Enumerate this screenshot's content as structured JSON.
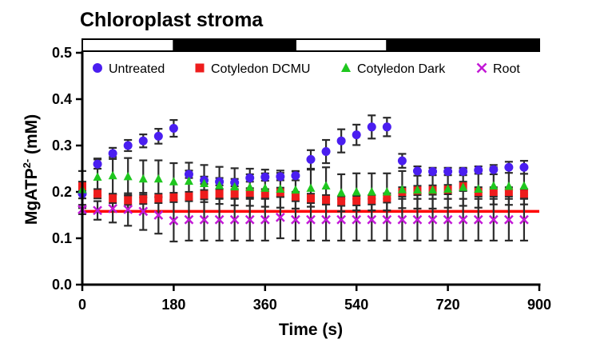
{
  "chart_data": {
    "type": "scatter",
    "title": "Chloroplast stroma",
    "xlabel": "Time (s)",
    "ylabel_main": "MgATP",
    "ylabel_sup": "2-",
    "ylabel_tail": " (mM)",
    "xlim": [
      0,
      900
    ],
    "ylim": [
      0,
      0.5
    ],
    "x_ticks": [
      0,
      180,
      360,
      540,
      720,
      900
    ],
    "x_tick_labels": [
      "0",
      "180",
      "360",
      "540",
      "720",
      "900"
    ],
    "y_ticks": [
      0,
      0.1,
      0.2,
      0.3,
      0.4,
      0.5
    ],
    "y_tick_labels": [
      "0.0",
      "0.1",
      "0.2",
      "0.3",
      "0.4",
      "0.5"
    ],
    "legend_position": "top",
    "light_dark_bar": [
      {
        "start": 0,
        "end": 180,
        "state": "light"
      },
      {
        "start": 180,
        "end": 420,
        "state": "dark"
      },
      {
        "start": 420,
        "end": 600,
        "state": "light"
      },
      {
        "start": 600,
        "end": 900,
        "state": "dark"
      }
    ],
    "reference_line": {
      "y": 0.158,
      "color": "#ff0000"
    },
    "series": [
      {
        "name": "Untreated",
        "marker": "circle",
        "color": "#4a1ef0",
        "x": [
          0,
          30,
          60,
          90,
          120,
          150,
          180,
          210,
          240,
          270,
          300,
          330,
          360,
          390,
          420,
          450,
          480,
          510,
          540,
          570,
          600,
          630,
          660,
          690,
          720,
          750,
          780,
          810,
          840,
          870
        ],
        "y": [
          0.196,
          0.26,
          0.283,
          0.3,
          0.31,
          0.32,
          0.337,
          0.238,
          0.225,
          0.222,
          0.22,
          0.23,
          0.232,
          0.233,
          0.235,
          0.27,
          0.287,
          0.31,
          0.323,
          0.34,
          0.34,
          0.267,
          0.245,
          0.244,
          0.244,
          0.244,
          0.247,
          0.248,
          0.253,
          0.253
        ],
        "err": [
          0.01,
          0.01,
          0.012,
          0.012,
          0.014,
          0.016,
          0.018,
          0.008,
          0.008,
          0.008,
          0.008,
          0.008,
          0.008,
          0.008,
          0.01,
          0.02,
          0.025,
          0.025,
          0.022,
          0.025,
          0.02,
          0.015,
          0.01,
          0.008,
          0.008,
          0.008,
          0.008,
          0.01,
          0.012,
          0.014
        ]
      },
      {
        "name": "Cotyledon DCMU",
        "marker": "square",
        "color": "#ee1c1c",
        "x": [
          0,
          30,
          60,
          90,
          120,
          150,
          180,
          210,
          240,
          270,
          300,
          330,
          360,
          390,
          420,
          450,
          480,
          510,
          540,
          570,
          600,
          630,
          660,
          690,
          720,
          750,
          780,
          810,
          840,
          870
        ],
        "y": [
          0.212,
          0.196,
          0.186,
          0.182,
          0.184,
          0.186,
          0.188,
          0.19,
          0.194,
          0.196,
          0.196,
          0.198,
          0.196,
          0.199,
          0.19,
          0.186,
          0.183,
          0.18,
          0.181,
          0.183,
          0.187,
          0.2,
          0.203,
          0.204,
          0.205,
          0.212,
          0.2,
          0.2,
          0.2,
          0.196
        ],
        "err": [
          0.01,
          0.01,
          0.01,
          0.01,
          0.01,
          0.01,
          0.01,
          0.01,
          0.01,
          0.01,
          0.01,
          0.01,
          0.01,
          0.01,
          0.01,
          0.01,
          0.01,
          0.01,
          0.01,
          0.01,
          0.01,
          0.01,
          0.01,
          0.01,
          0.01,
          0.01,
          0.01,
          0.01,
          0.01,
          0.01
        ]
      },
      {
        "name": "Cotyledon Dark",
        "marker": "triangle",
        "color": "#1fc71f",
        "x": [
          0,
          30,
          60,
          90,
          120,
          150,
          180,
          210,
          240,
          270,
          300,
          330,
          360,
          390,
          420,
          450,
          480,
          510,
          540,
          570,
          600,
          630,
          660,
          690,
          720,
          750,
          780,
          810,
          840,
          870
        ],
        "y": [
          0.205,
          0.232,
          0.235,
          0.233,
          0.228,
          0.228,
          0.222,
          0.223,
          0.218,
          0.214,
          0.211,
          0.21,
          0.208,
          0.206,
          0.204,
          0.208,
          0.213,
          0.198,
          0.2,
          0.2,
          0.2,
          0.205,
          0.204,
          0.204,
          0.206,
          0.21,
          0.206,
          0.213,
          0.212,
          0.213
        ],
        "err": [
          0.04,
          0.04,
          0.04,
          0.04,
          0.04,
          0.04,
          0.04,
          0.04,
          0.04,
          0.04,
          0.04,
          0.04,
          0.04,
          0.04,
          0.04,
          0.04,
          0.04,
          0.04,
          0.04,
          0.04,
          0.04,
          0.04,
          0.04,
          0.04,
          0.04,
          0.04,
          0.04,
          0.04,
          0.04,
          0.04
        ]
      },
      {
        "name": "Root",
        "marker": "x",
        "color": "#c218d6",
        "x": [
          0,
          30,
          60,
          90,
          120,
          150,
          180,
          210,
          240,
          270,
          300,
          330,
          360,
          390,
          420,
          450,
          480,
          510,
          540,
          570,
          600,
          630,
          660,
          690,
          720,
          750,
          780,
          810,
          840,
          870
        ],
        "y": [
          0.162,
          0.16,
          0.164,
          0.162,
          0.158,
          0.15,
          0.138,
          0.14,
          0.14,
          0.14,
          0.14,
          0.14,
          0.14,
          0.145,
          0.14,
          0.14,
          0.14,
          0.14,
          0.14,
          0.14,
          0.14,
          0.14,
          0.14,
          0.14,
          0.14,
          0.14,
          0.14,
          0.14,
          0.14,
          0.14
        ],
        "err": [
          0.01,
          0.02,
          0.03,
          0.035,
          0.04,
          0.04,
          0.045,
          0.045,
          0.045,
          0.045,
          0.045,
          0.045,
          0.045,
          0.045,
          0.045,
          0.045,
          0.045,
          0.045,
          0.045,
          0.045,
          0.045,
          0.045,
          0.045,
          0.045,
          0.045,
          0.045,
          0.045,
          0.045,
          0.045,
          0.045
        ]
      }
    ]
  }
}
